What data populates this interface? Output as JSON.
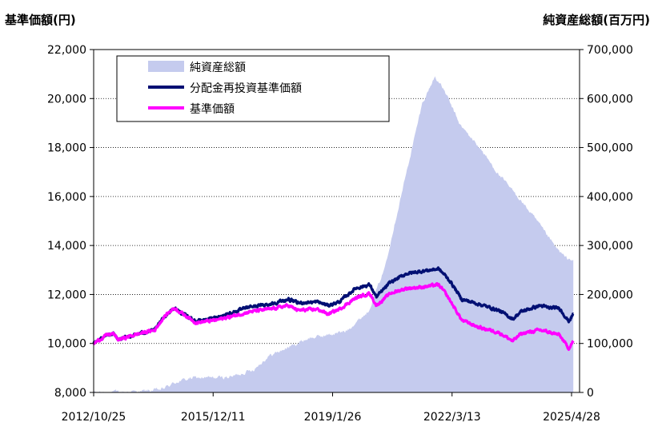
{
  "chart_data": {
    "type": "area+line",
    "left_axis_title": "基準価額(円)",
    "right_axis_title": "純資産総額(百万円)",
    "x_tick_labels": [
      "2012/10/25",
      "2015/12/11",
      "2019/1/26",
      "2022/3/13",
      "2025/4/28"
    ],
    "y_left": {
      "min": 8000,
      "max": 22000,
      "ticks": [
        "8,000",
        "10,000",
        "12,000",
        "14,000",
        "16,000",
        "18,000",
        "20,000",
        "22,000"
      ]
    },
    "y_right": {
      "min": 0,
      "max": 700000,
      "ticks": [
        "0",
        "100,000",
        "200,000",
        "300,000",
        "400,000",
        "500,000",
        "600,000",
        "700,000"
      ]
    },
    "grid": "horizontal dotted",
    "legend_position": "top-left",
    "series": [
      {
        "name": "純資産総額",
        "axis": "right",
        "style": "area",
        "color": "#c5cbee",
        "points": [
          [
            "2012/10/25",
            0
          ],
          [
            "2013/6/1",
            1000
          ],
          [
            "2014/1/1",
            2000
          ],
          [
            "2014/8/1",
            6000
          ],
          [
            "2015/1/1",
            22000
          ],
          [
            "2015/6/1",
            30000
          ],
          [
            "2016/1/1",
            30000
          ],
          [
            "2016/6/1",
            32000
          ],
          [
            "2017/1/1",
            47000
          ],
          [
            "2017/6/1",
            75000
          ],
          [
            "2018/1/1",
            95000
          ],
          [
            "2018/6/1",
            110000
          ],
          [
            "2019/1/1",
            118000
          ],
          [
            "2019/6/1",
            125000
          ],
          [
            "2020/1/1",
            165000
          ],
          [
            "2020/6/1",
            250000
          ],
          [
            "2020/12/1",
            420000
          ],
          [
            "2021/6/1",
            590000
          ],
          [
            "2021/10/1",
            645000
          ],
          [
            "2022/1/1",
            615000
          ],
          [
            "2022/6/1",
            545000
          ],
          [
            "2022/12/1",
            500000
          ],
          [
            "2023/6/1",
            445000
          ],
          [
            "2023/12/1",
            400000
          ],
          [
            "2024/6/1",
            350000
          ],
          [
            "2024/12/1",
            295000
          ],
          [
            "2025/3/1",
            275000
          ],
          [
            "2025/5/15",
            270000
          ]
        ]
      },
      {
        "name": "分配金再投資基準価額",
        "axis": "left",
        "style": "line",
        "color": "#000f73",
        "points": [
          [
            "2012/10/25",
            10000
          ],
          [
            "2013/3/1",
            10350
          ],
          [
            "2013/5/1",
            10400
          ],
          [
            "2013/6/15",
            10150
          ],
          [
            "2014/1/1",
            10400
          ],
          [
            "2014/6/1",
            10550
          ],
          [
            "2014/9/1",
            11100
          ],
          [
            "2014/12/1",
            11450
          ],
          [
            "2015/3/1",
            11200
          ],
          [
            "2015/7/1",
            10900
          ],
          [
            "2016/1/1",
            11050
          ],
          [
            "2016/6/1",
            11250
          ],
          [
            "2016/12/1",
            11500
          ],
          [
            "2017/6/1",
            11600
          ],
          [
            "2017/12/1",
            11800
          ],
          [
            "2018/3/1",
            11650
          ],
          [
            "2018/9/1",
            11700
          ],
          [
            "2018/12/15",
            11550
          ],
          [
            "2019/4/1",
            11700
          ],
          [
            "2019/9/1",
            12250
          ],
          [
            "2020/1/15",
            12400
          ],
          [
            "2020/3/20",
            11900
          ],
          [
            "2020/8/1",
            12500
          ],
          [
            "2021/1/1",
            12850
          ],
          [
            "2021/6/1",
            12950
          ],
          [
            "2021/11/1",
            13050
          ],
          [
            "2022/1/1",
            12800
          ],
          [
            "2022/3/1",
            12500
          ],
          [
            "2022/6/15",
            11800
          ],
          [
            "2022/12/1",
            11600
          ],
          [
            "2023/6/1",
            11350
          ],
          [
            "2023/10/15",
            11000
          ],
          [
            "2024/1/1",
            11300
          ],
          [
            "2024/7/1",
            11550
          ],
          [
            "2024/10/1",
            11450
          ],
          [
            "2025/1/1",
            11450
          ],
          [
            "2025/4/1",
            10900
          ],
          [
            "2025/5/15",
            11200
          ]
        ]
      },
      {
        "name": "基準価額",
        "axis": "left",
        "style": "line",
        "color": "#ff00ff",
        "points": [
          [
            "2012/10/25",
            10000
          ],
          [
            "2013/3/1",
            10350
          ],
          [
            "2013/5/1",
            10400
          ],
          [
            "2013/6/15",
            10150
          ],
          [
            "2014/1/1",
            10400
          ],
          [
            "2014/6/1",
            10550
          ],
          [
            "2014/9/1",
            11100
          ],
          [
            "2014/12/1",
            11450
          ],
          [
            "2015/3/1",
            11200
          ],
          [
            "2015/7/1",
            10850
          ],
          [
            "2016/1/1",
            10950
          ],
          [
            "2016/6/1",
            11100
          ],
          [
            "2016/12/1",
            11300
          ],
          [
            "2017/6/1",
            11400
          ],
          [
            "2017/12/1",
            11550
          ],
          [
            "2018/3/1",
            11350
          ],
          [
            "2018/9/1",
            11400
          ],
          [
            "2018/12/15",
            11200
          ],
          [
            "2019/4/1",
            11400
          ],
          [
            "2019/9/1",
            11850
          ],
          [
            "2020/1/15",
            12050
          ],
          [
            "2020/3/20",
            11550
          ],
          [
            "2020/8/1",
            12050
          ],
          [
            "2021/1/1",
            12250
          ],
          [
            "2021/6/1",
            12300
          ],
          [
            "2021/11/1",
            12400
          ],
          [
            "2022/1/1",
            12100
          ],
          [
            "2022/3/1",
            11700
          ],
          [
            "2022/6/15",
            10950
          ],
          [
            "2022/12/1",
            10650
          ],
          [
            "2023/6/1",
            10450
          ],
          [
            "2023/10/15",
            10100
          ],
          [
            "2024/1/1",
            10400
          ],
          [
            "2024/7/1",
            10550
          ],
          [
            "2024/10/1",
            10450
          ],
          [
            "2025/1/1",
            10350
          ],
          [
            "2025/4/1",
            9800
          ],
          [
            "2025/5/15",
            10100
          ]
        ]
      }
    ]
  }
}
